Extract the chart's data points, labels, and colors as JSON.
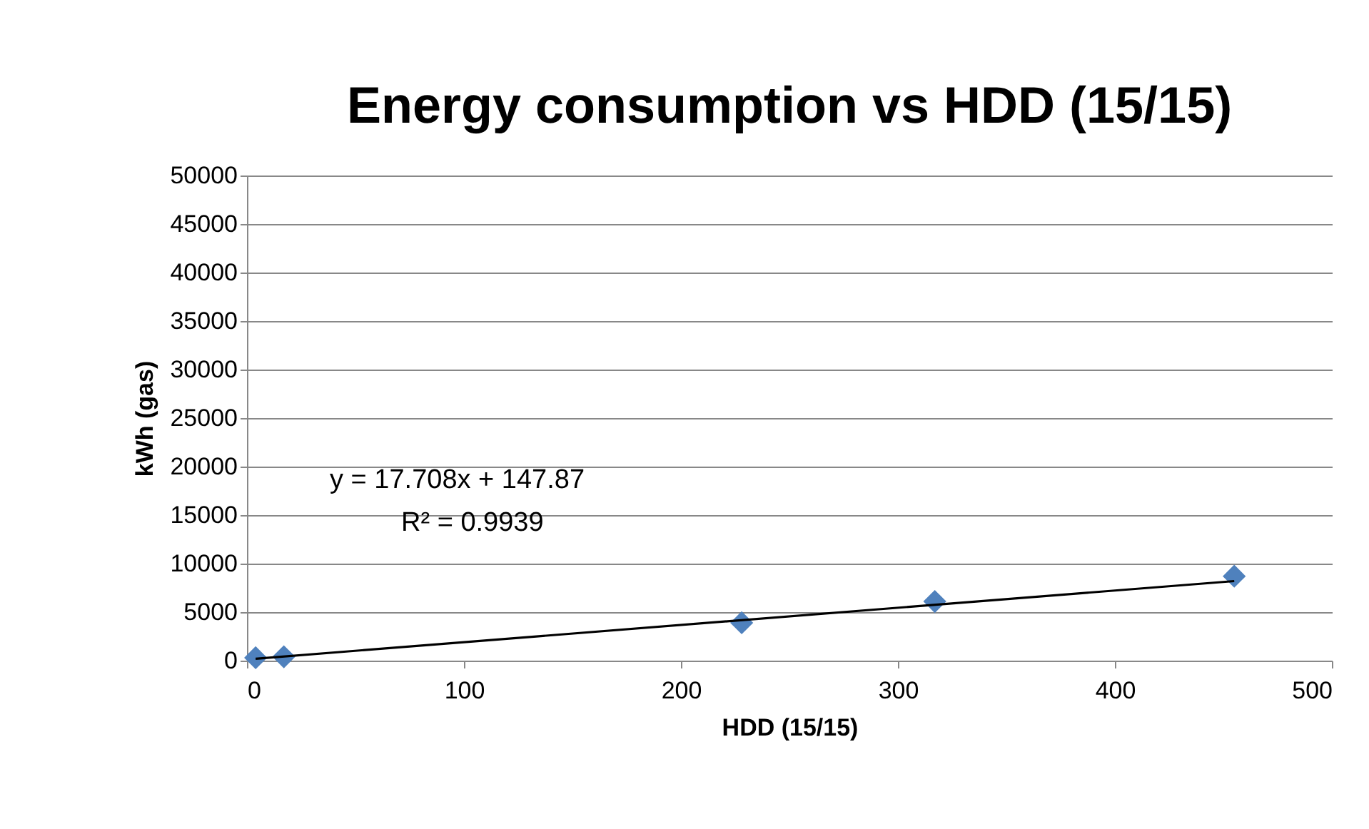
{
  "chart_data": {
    "type": "scatter",
    "title": "Energy consumption vs HDD (15/15)",
    "xlabel": "HDD (15/15)",
    "ylabel": "kWh (gas)",
    "x": [
      4,
      17,
      228,
      317,
      455
    ],
    "series": [
      {
        "color": "#4f81bd",
        "values": [
          300,
          400,
          3900,
          6100,
          8700
        ]
      },
      {
        "type": "line",
        "color": "#000000",
        "marker": "none",
        "x": [
          4,
          455
        ],
        "values": [
          200,
          8200
        ]
      }
    ],
    "xlim": [
      0,
      500
    ],
    "xticks": [
      0,
      100,
      200,
      300,
      400,
      500
    ],
    "ylim": [
      0,
      50000
    ],
    "yticks": [
      0,
      5000,
      10000,
      15000,
      20000,
      25000,
      30000,
      35000,
      40000,
      45000,
      50000
    ],
    "annotations": [
      "y = 17.708x + 147.87",
      "R² = 0.9939"
    ],
    "grid": "y",
    "marker": "diamond"
  }
}
